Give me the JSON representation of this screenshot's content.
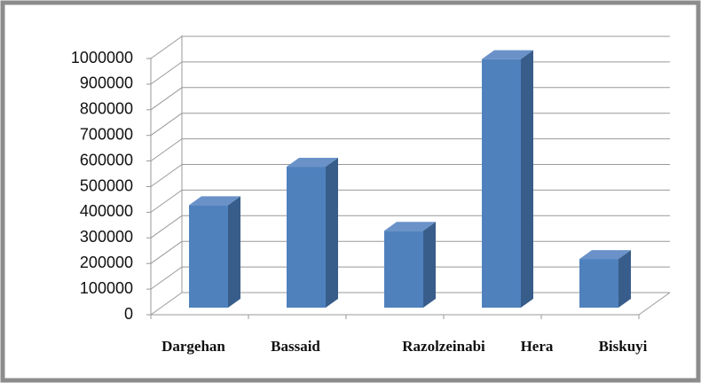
{
  "chart_data": {
    "type": "bar3d",
    "categories": [
      "Dargehan",
      "Bassaid",
      "Razolzeinabi",
      "Hera",
      "Biskuyi"
    ],
    "values": [
      400000,
      550000,
      300000,
      970000,
      190000
    ],
    "color": "#4f81bd",
    "ylim": [
      0,
      1000000
    ],
    "yticks": [
      0,
      100000,
      200000,
      300000,
      400000,
      500000,
      600000,
      700000,
      800000,
      900000,
      1000000
    ],
    "grid": true
  }
}
